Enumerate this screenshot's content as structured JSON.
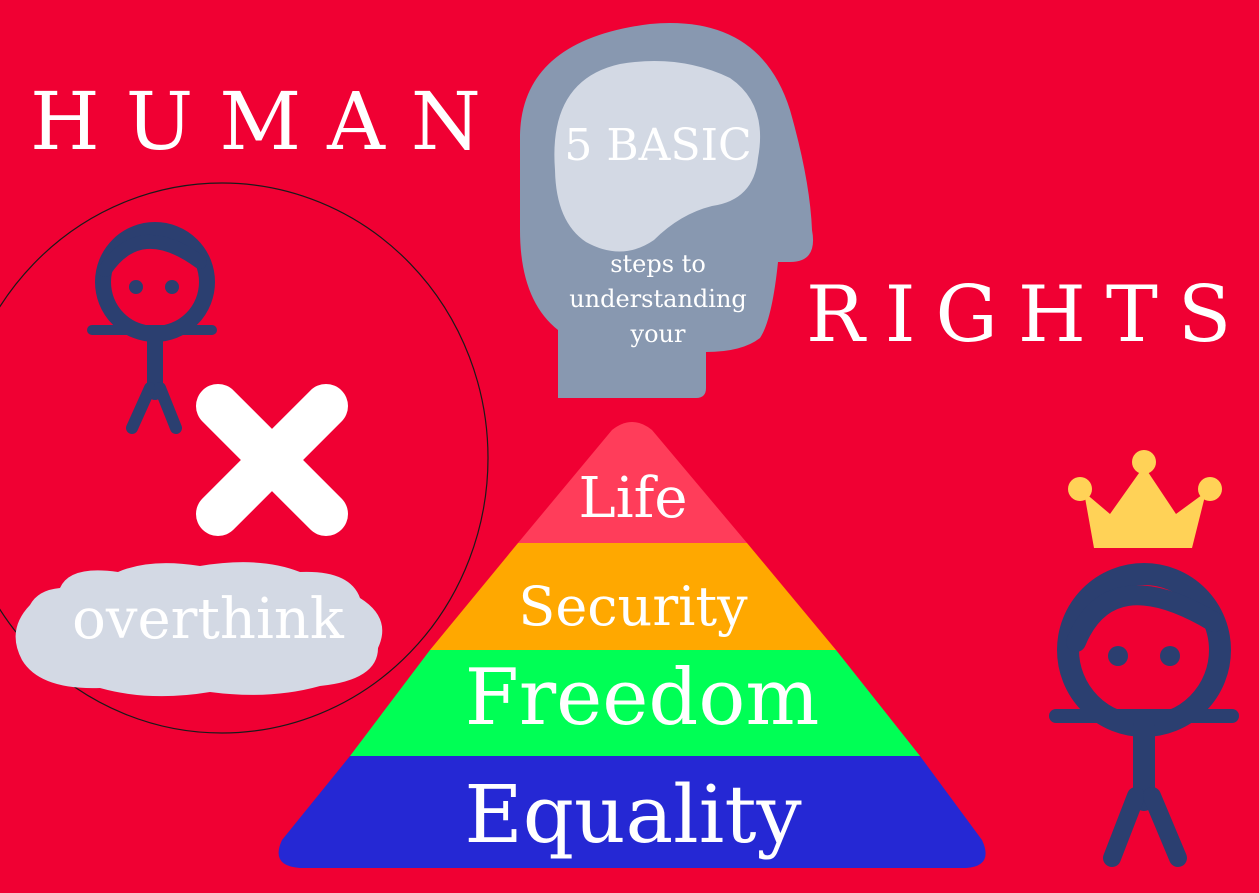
{
  "title": {
    "word1": "HUMAN",
    "word2": "RIGHTS"
  },
  "head": {
    "brain_text": "5 BASIC",
    "line1": "steps to",
    "line2": "understanding",
    "line3": "your",
    "color": "#8898b0",
    "brain_color": "#d3d9e4"
  },
  "pyramid": {
    "levels": [
      {
        "label": "Life",
        "color": "#ff3d5a"
      },
      {
        "label": "Security",
        "color": "#ffa800"
      },
      {
        "label": "Freedom",
        "color": "#00ff55"
      },
      {
        "label": "Equality",
        "color": "#2528d4"
      }
    ]
  },
  "cloud": {
    "text": "overthink",
    "color": "#d3d9e4"
  },
  "colors": {
    "background": "#f00033",
    "figure": "#2b3f70",
    "crown": "#ffd257",
    "cross": "#ffffff"
  }
}
